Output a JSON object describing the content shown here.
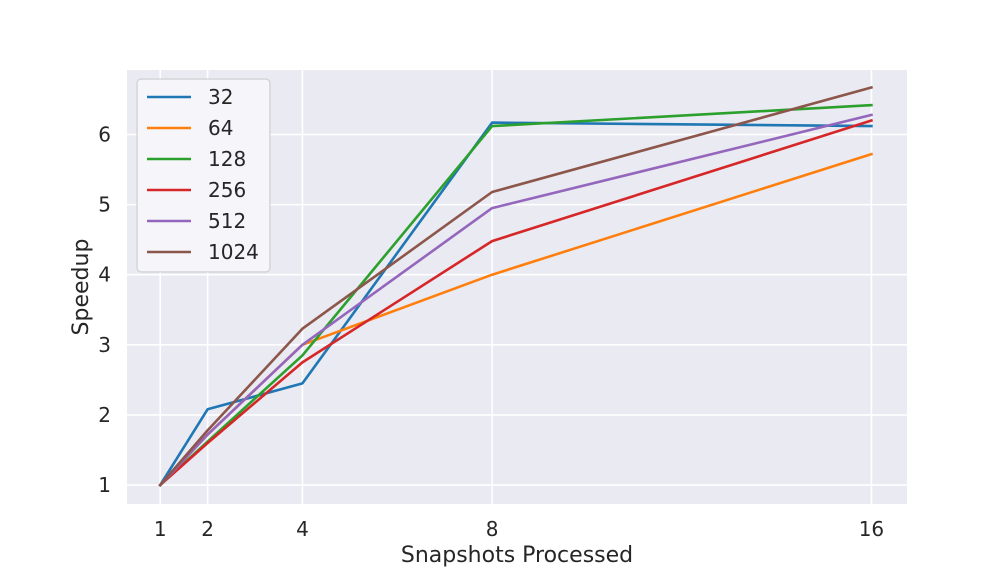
{
  "chart_data": {
    "type": "line",
    "title": "",
    "xlabel": "Snapshots Processed",
    "ylabel": "Speedup",
    "x": [
      1,
      2,
      4,
      8,
      16
    ],
    "xticks": [
      "1",
      "2",
      "4",
      "8",
      "16"
    ],
    "yticks": [
      "1",
      "2",
      "3",
      "4",
      "5",
      "6"
    ],
    "xlim": [
      0.3,
      16.75
    ],
    "ylim": [
      0.73,
      6.92
    ],
    "grid": true,
    "legend_position": "upper-left",
    "background": "#eaeaf2",
    "series": [
      {
        "name": "32",
        "color": "#1f77b4",
        "values": [
          1.0,
          2.08,
          2.45,
          6.17,
          6.12
        ]
      },
      {
        "name": "64",
        "color": "#ff7f0e",
        "values": [
          1.0,
          1.72,
          3.0,
          4.0,
          5.72
        ]
      },
      {
        "name": "128",
        "color": "#2ca02c",
        "values": [
          1.0,
          1.62,
          2.85,
          6.12,
          6.42
        ]
      },
      {
        "name": "256",
        "color": "#d62728",
        "values": [
          1.0,
          1.6,
          2.75,
          4.48,
          6.2
        ]
      },
      {
        "name": "512",
        "color": "#9467bd",
        "values": [
          1.0,
          1.72,
          3.0,
          4.95,
          6.28
        ]
      },
      {
        "name": "1024",
        "color": "#8c564b",
        "values": [
          1.0,
          1.78,
          3.23,
          5.18,
          6.67
        ]
      }
    ]
  }
}
